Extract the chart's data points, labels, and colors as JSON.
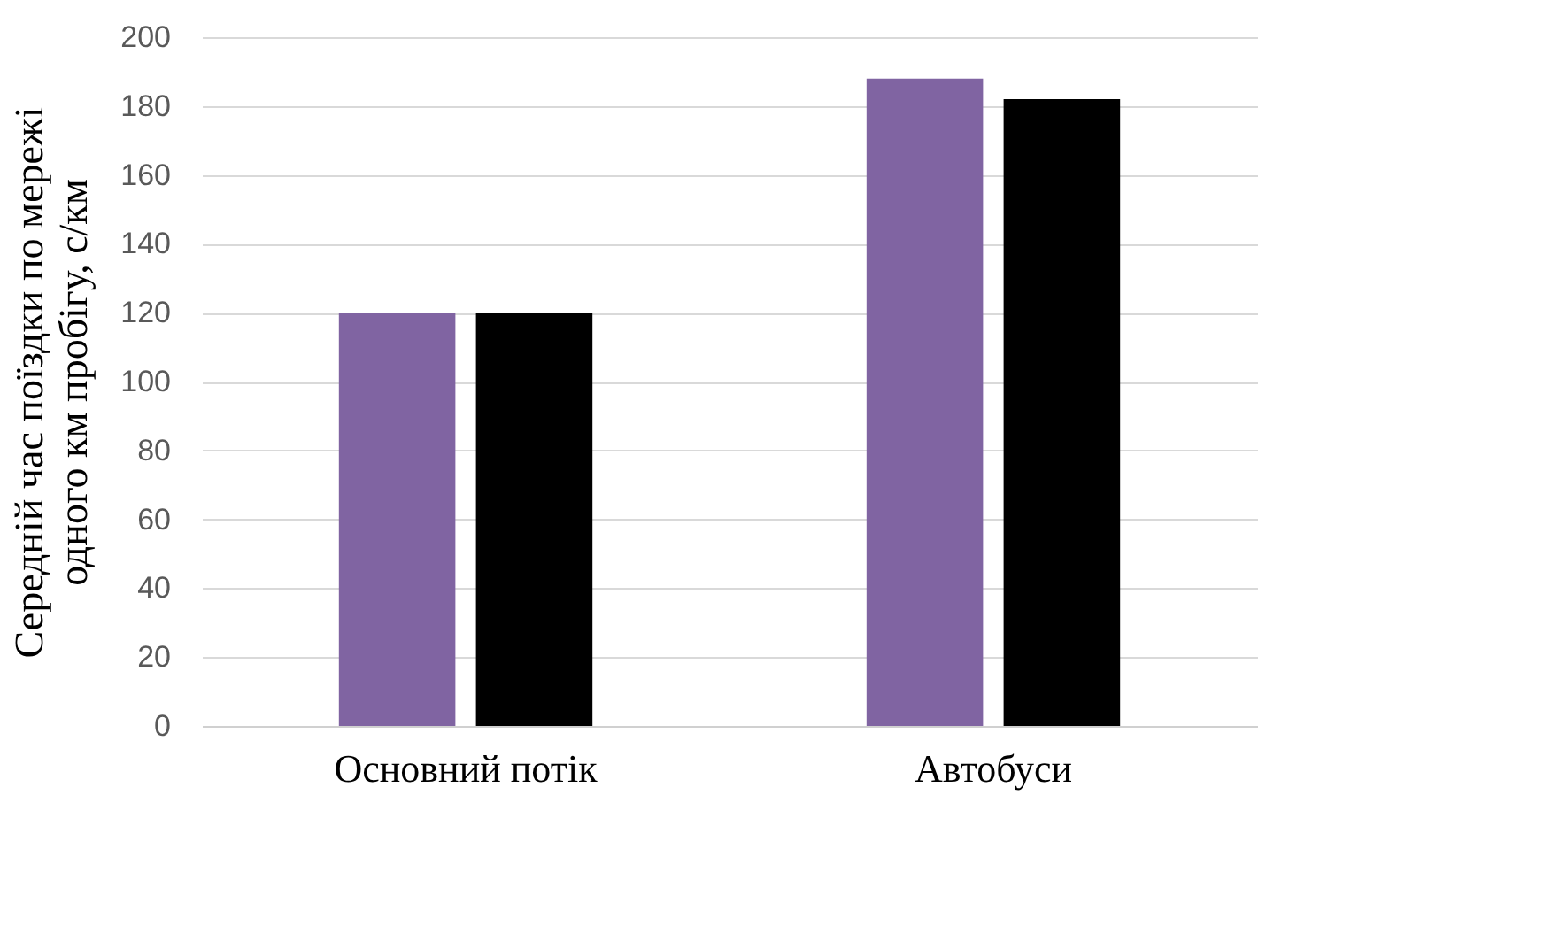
{
  "chart_data": {
    "type": "bar",
    "ylabel": "Середній час поїздки по мережі\nодного км пробігу, с/км",
    "categories": [
      "Основний потік",
      "Автобуси"
    ],
    "series": [
      {
        "color": "#8064a2",
        "values": [
          120,
          188
        ]
      },
      {
        "color": "#000000",
        "values": [
          120,
          182
        ]
      }
    ],
    "ylim": [
      0,
      200
    ],
    "yticks": [
      0,
      20,
      40,
      60,
      80,
      100,
      120,
      140,
      160,
      180,
      200
    ],
    "grid": "y",
    "legend": false
  }
}
